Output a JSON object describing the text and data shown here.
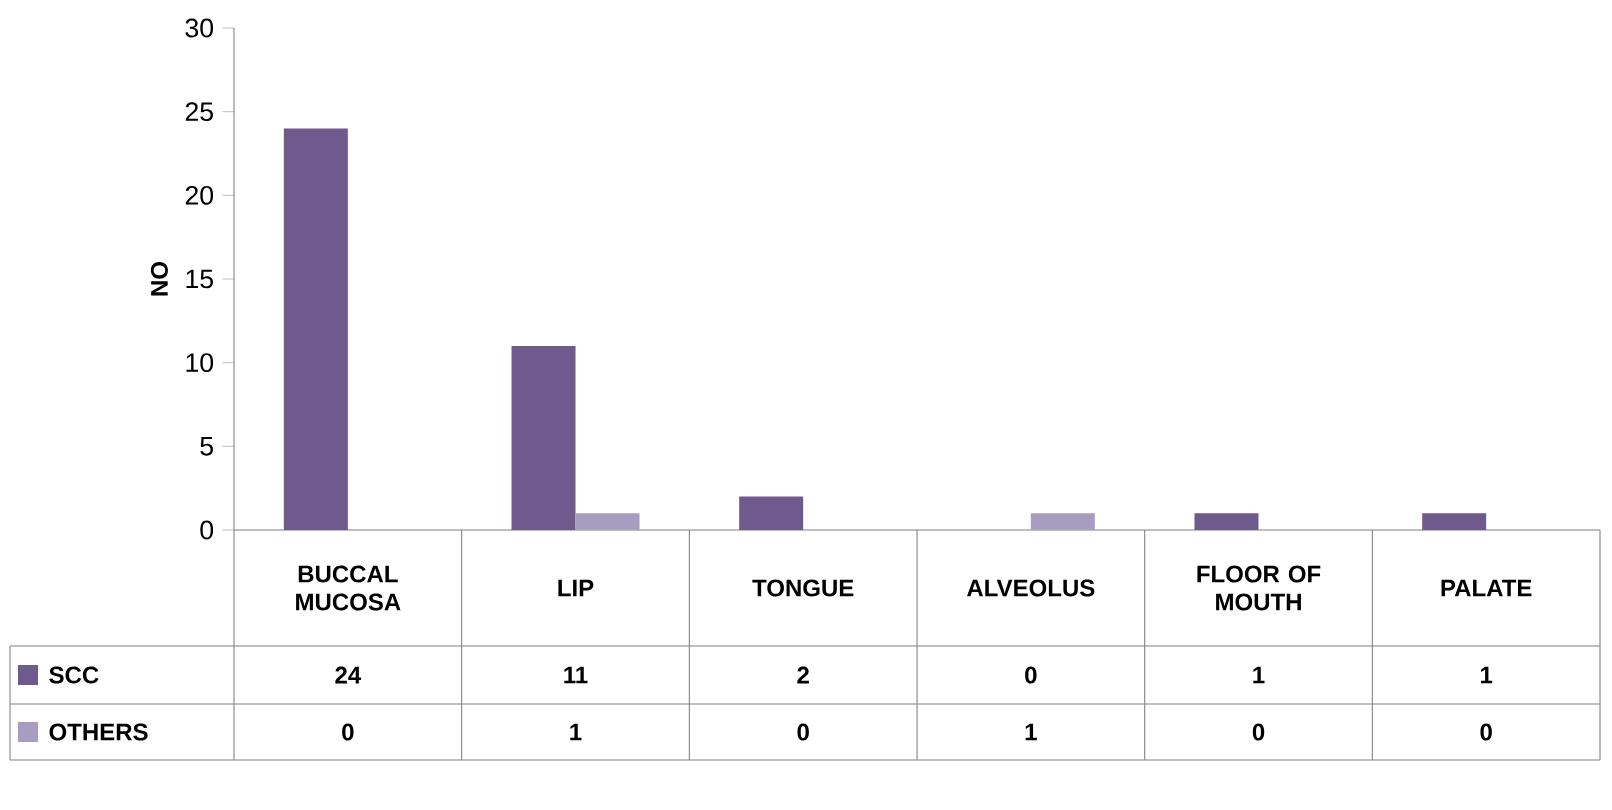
{
  "chart_data": {
    "type": "bar",
    "ylabel": "NO",
    "categories": [
      "BUCCAL MUCOSA",
      "LIP",
      "TONGUE",
      "ALVEOLUS",
      "FLOOR OF MOUTH",
      "PALATE"
    ],
    "series": [
      {
        "name": "SCC",
        "color": "#6f5a8e",
        "values": [
          24,
          11,
          2,
          0,
          1,
          1
        ]
      },
      {
        "name": "OTHERS",
        "color": "#a89cc0",
        "values": [
          0,
          1,
          0,
          1,
          0,
          0
        ]
      }
    ],
    "ylim": [
      0,
      30
    ],
    "yticks": [
      0,
      5,
      10,
      15,
      20,
      25,
      30
    ],
    "data_labels": true,
    "legend": "bottom left",
    "grid": false
  }
}
